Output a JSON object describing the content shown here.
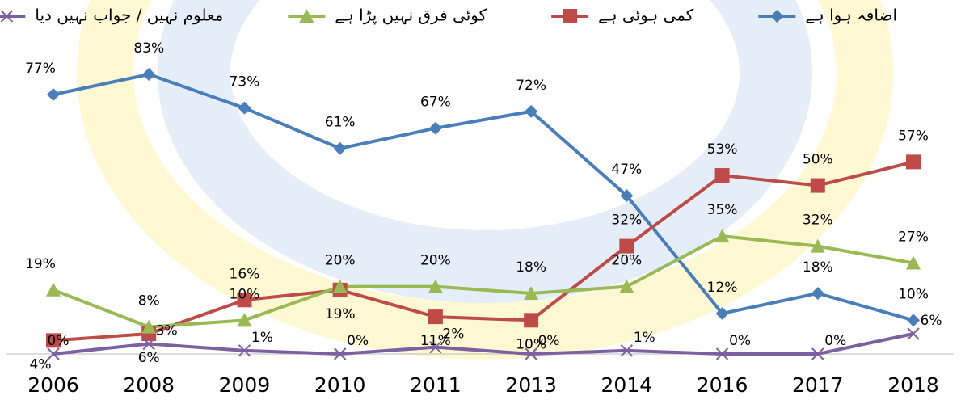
{
  "chart_data": {
    "type": "line",
    "categories": [
      "2006",
      "2008",
      "2009",
      "2010",
      "2011",
      "2013",
      "2014",
      "2016",
      "2017",
      "2018"
    ],
    "series": [
      {
        "name": "اضافہ ہوا ہے",
        "color": "#4a7ebb",
        "marker": "diamond",
        "values": [
          77,
          83,
          73,
          61,
          67,
          72,
          47,
          12,
          18,
          10
        ],
        "value_labels": [
          "77%",
          "83%",
          "73%",
          "61%",
          "67%",
          "72%",
          "47%",
          "12%",
          "18%",
          "10%"
        ]
      },
      {
        "name": "کمی ہوئی ہے",
        "color": "#be4b48",
        "marker": "square",
        "values": [
          4,
          6,
          16,
          19,
          11,
          10,
          32,
          53,
          50,
          57
        ],
        "value_labels": [
          "4%",
          "6%",
          "16%",
          "19%",
          "11%",
          "10%",
          "32%",
          "53%",
          "50%",
          "57%"
        ]
      },
      {
        "name": "کوئی فرق نہیں پڑا ہے",
        "color": "#98b954",
        "marker": "triangle",
        "values": [
          19,
          8,
          10,
          20,
          20,
          18,
          20,
          35,
          32,
          27
        ],
        "value_labels": [
          "19%",
          "8%",
          "10%",
          "20%",
          "20%",
          "18%",
          "20%",
          "35%",
          "32%",
          "27%"
        ]
      },
      {
        "name": "معلوم نہیں / جواب نہیں دیا",
        "color": "#7d60a0",
        "marker": "x",
        "values": [
          0,
          3,
          1,
          0,
          2,
          0,
          1,
          0,
          0,
          6
        ],
        "value_labels": [
          "0%",
          "3%",
          "1%",
          "0%",
          "2%",
          "0%",
          "1%",
          "0%",
          "0%",
          "6%"
        ]
      }
    ],
    "legend": "top"
  }
}
